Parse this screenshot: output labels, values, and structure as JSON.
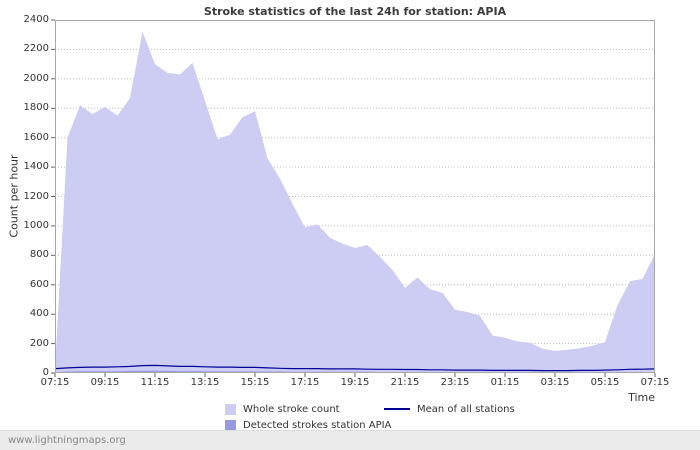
{
  "watermark": "www.lightningmaps.org",
  "colors": {
    "whole_area": "#cdcdf4",
    "detected_area": "#9898e0",
    "mean_line": "#000099",
    "grid": "#bdbdbd",
    "plot_border": "#a8a8a8"
  },
  "chart_data": {
    "type": "area",
    "title": "Stroke statistics of the last 24h for station: APIA",
    "xlabel": "Time",
    "ylabel": "Count per hour",
    "ylim": [
      0,
      2400
    ],
    "ytick_step": 200,
    "grid": true,
    "legend_position": "bottom",
    "x_hours_span": 24,
    "x_step_hours": 0.5,
    "x_tick_hours": [
      0,
      2,
      4,
      6,
      8,
      10,
      12,
      14,
      16,
      18,
      20,
      22,
      24
    ],
    "x_tick_labels": [
      "07:15",
      "09:15",
      "11:15",
      "13:15",
      "15:15",
      "17:15",
      "19:15",
      "21:15",
      "23:15",
      "01:15",
      "03:15",
      "05:15",
      "07:15"
    ],
    "series": [
      {
        "name": "Whole stroke count",
        "kind": "area",
        "color": "#cdcdf4",
        "values": [
          30,
          1600,
          1820,
          1760,
          1810,
          1750,
          1870,
          2320,
          2100,
          2040,
          2030,
          2110,
          1850,
          1590,
          1620,
          1740,
          1780,
          1460,
          1320,
          1150,
          990,
          1010,
          920,
          880,
          850,
          870,
          790,
          700,
          580,
          650,
          570,
          545,
          430,
          415,
          390,
          255,
          240,
          215,
          205,
          165,
          150,
          158,
          168,
          185,
          210,
          460,
          625,
          640,
          810
        ]
      },
      {
        "name": "Detected strokes station APIA",
        "kind": "area",
        "color": "#9898e0",
        "values": [
          5,
          10,
          12,
          12,
          12,
          12,
          14,
          15,
          15,
          14,
          13,
          13,
          12,
          11,
          11,
          11,
          11,
          10,
          10,
          9,
          9,
          9,
          8,
          8,
          8,
          8,
          7,
          7,
          6,
          7,
          6,
          6,
          5,
          5,
          5,
          4,
          4,
          4,
          4,
          3,
          3,
          3,
          3,
          4,
          4,
          5,
          6,
          6,
          7
        ]
      },
      {
        "name": "Mean of all stations",
        "kind": "line",
        "color": "#000099",
        "values": [
          30,
          35,
          38,
          40,
          40,
          42,
          45,
          50,
          52,
          48,
          45,
          45,
          42,
          40,
          40,
          38,
          38,
          35,
          32,
          30,
          30,
          30,
          28,
          28,
          28,
          26,
          25,
          25,
          24,
          24,
          22,
          22,
          20,
          20,
          20,
          18,
          18,
          18,
          18,
          16,
          16,
          16,
          18,
          18,
          20,
          22,
          25,
          26,
          28
        ]
      }
    ]
  }
}
